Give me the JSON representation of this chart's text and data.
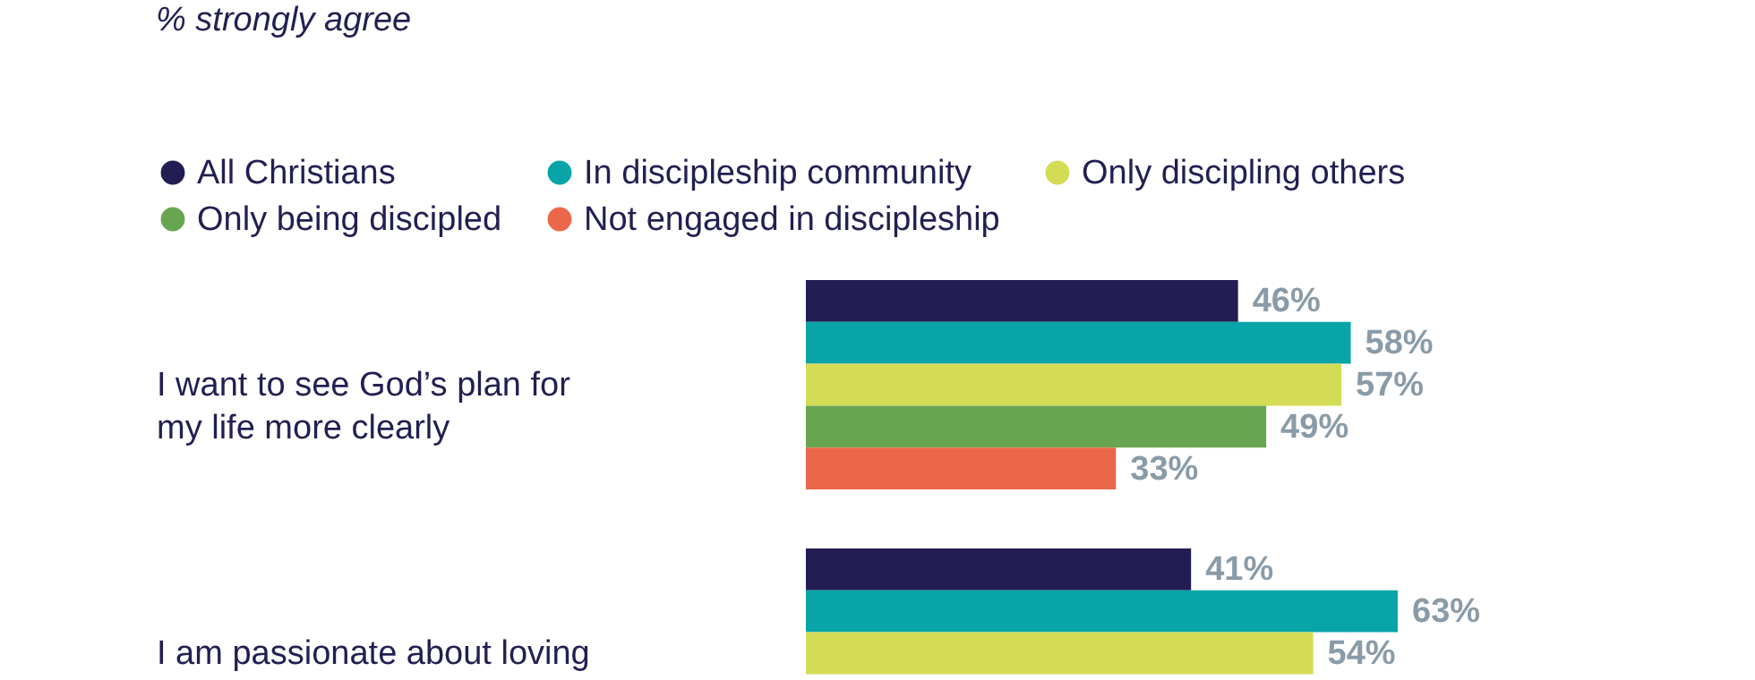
{
  "chart_data": {
    "type": "bar",
    "orientation": "horizontal",
    "title": "% strongly agree",
    "categories": [
      "I want to see God’s plan for my life more clearly",
      "I am passionate about loving"
    ],
    "series": [
      {
        "name": "All Christians",
        "color": "#221d52",
        "values": [
          46,
          41
        ],
        "value_labels": [
          "46%",
          "41%"
        ]
      },
      {
        "name": "In discipleship community",
        "color": "#08a4a8",
        "values": [
          58,
          63
        ],
        "value_labels": [
          "58%",
          "63%"
        ]
      },
      {
        "name": "Only discipling others",
        "color": "#d3dc54",
        "values": [
          57,
          54
        ],
        "value_labels": [
          "57%",
          "54%"
        ]
      },
      {
        "name": "Only being discipled",
        "color": "#68a550",
        "values": [
          49,
          null
        ],
        "value_labels": [
          "49%",
          null
        ]
      },
      {
        "name": "Not engaged in discipleship",
        "color": "#ec674a",
        "values": [
          33,
          null
        ],
        "value_labels": [
          "33%",
          null
        ]
      }
    ],
    "legend": "top left"
  }
}
